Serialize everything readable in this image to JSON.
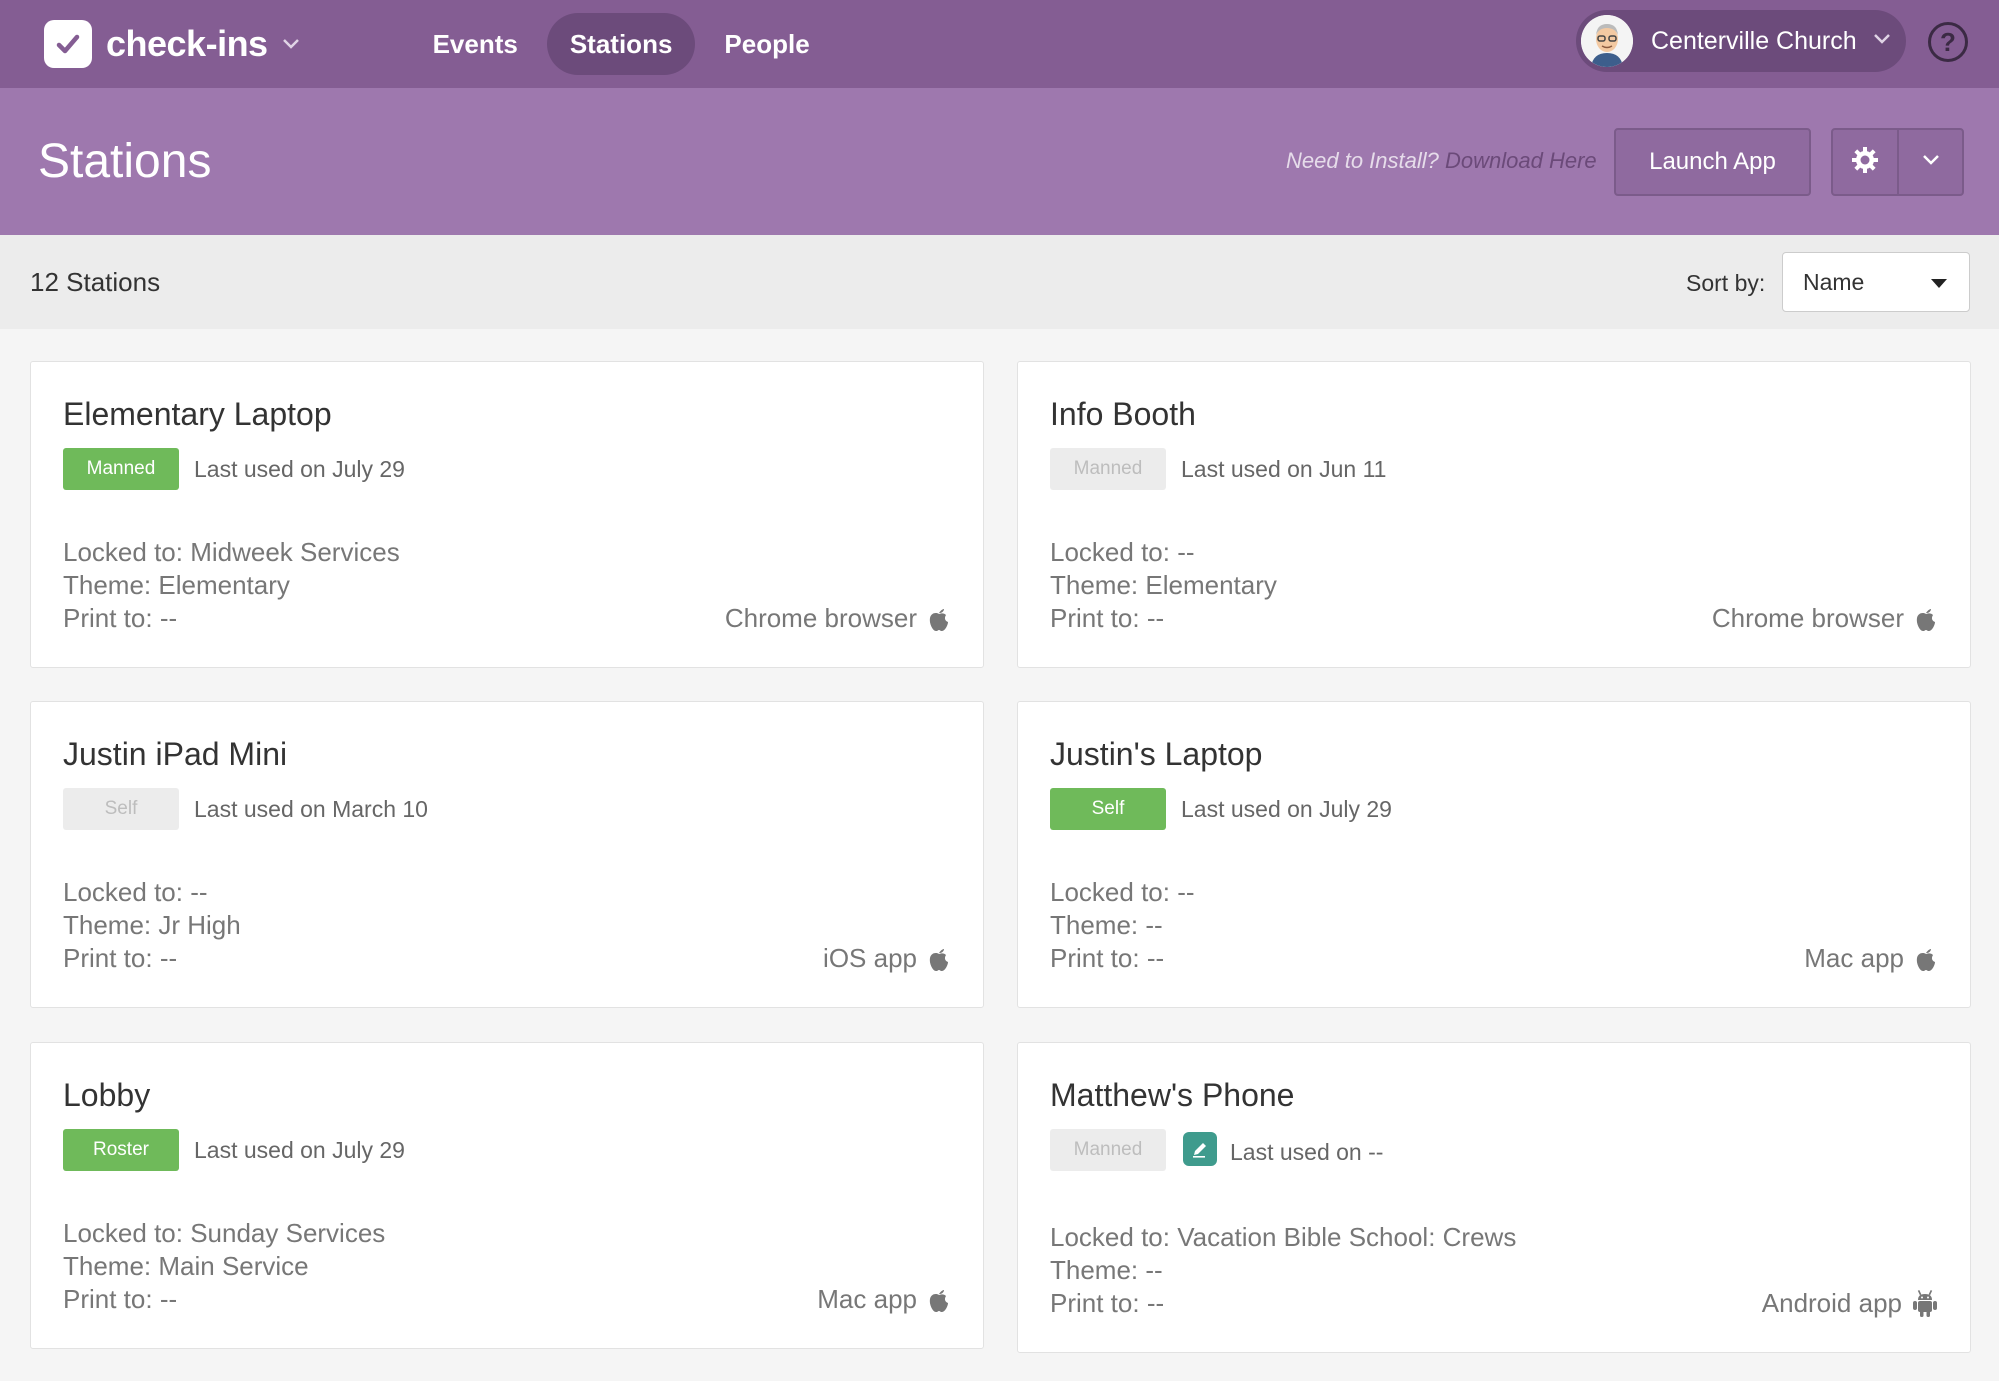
{
  "brand": {
    "name": "check-ins",
    "icon": "checkmark-icon"
  },
  "nav": {
    "items": [
      {
        "label": "Events",
        "active": false
      },
      {
        "label": "Stations",
        "active": true
      },
      {
        "label": "People",
        "active": false
      }
    ]
  },
  "org": {
    "name": "Centerville Church"
  },
  "help": {
    "label": "?"
  },
  "header": {
    "title": "Stations",
    "install_prompt": "Need to Install?",
    "install_link": "Download Here",
    "launch_label": "Launch App"
  },
  "toolbar": {
    "count": "12 Stations",
    "sort_label": "Sort by:",
    "sort_value": "Name"
  },
  "colors": {
    "nav": "#845d93",
    "subheader": "#9e78ae",
    "badge_active": "#6fba5a",
    "edit_icon": "#3f9b8d"
  },
  "stations": [
    {
      "name": "Elementary Laptop",
      "badge": "Manned",
      "badge_active": true,
      "last_used": "Last used on July 29",
      "locked_to": "Locked to: Midweek Services",
      "theme": "Theme: Elementary",
      "print_to": "Print to: --",
      "device": "Chrome browser",
      "device_icon": "apple-icon"
    },
    {
      "name": "Info Booth",
      "badge": "Manned",
      "badge_active": false,
      "last_used": "Last used on Jun 11",
      "locked_to": "Locked to: --",
      "theme": "Theme: Elementary",
      "print_to": "Print to: --",
      "device": "Chrome browser",
      "device_icon": "apple-icon"
    },
    {
      "name": "Justin iPad Mini",
      "badge": "Self",
      "badge_active": false,
      "last_used": "Last used on March 10",
      "locked_to": "Locked to: --",
      "theme": "Theme: Jr High",
      "print_to": "Print to: --",
      "device": "iOS app",
      "device_icon": "apple-icon"
    },
    {
      "name": "Justin's Laptop",
      "badge": "Self",
      "badge_active": true,
      "last_used": "Last used on July 29",
      "locked_to": "Locked to: --",
      "theme": "Theme: --",
      "print_to": "Print to: --",
      "device": "Mac app",
      "device_icon": "apple-icon"
    },
    {
      "name": "Lobby",
      "badge": "Roster",
      "badge_active": true,
      "last_used": "Last used on July 29",
      "locked_to": "Locked to: Sunday Services",
      "theme": "Theme: Main Service",
      "print_to": "Print to: --",
      "device": "Mac app",
      "device_icon": "apple-icon"
    },
    {
      "name": "Matthew's Phone",
      "badge": "Manned",
      "badge_active": false,
      "last_used": "Last used on --",
      "locked_to": "Locked to: Vacation Bible School: Crews",
      "theme": "Theme: --",
      "print_to": "Print to: --",
      "device": "Android app",
      "device_icon": "android-icon"
    }
  ]
}
